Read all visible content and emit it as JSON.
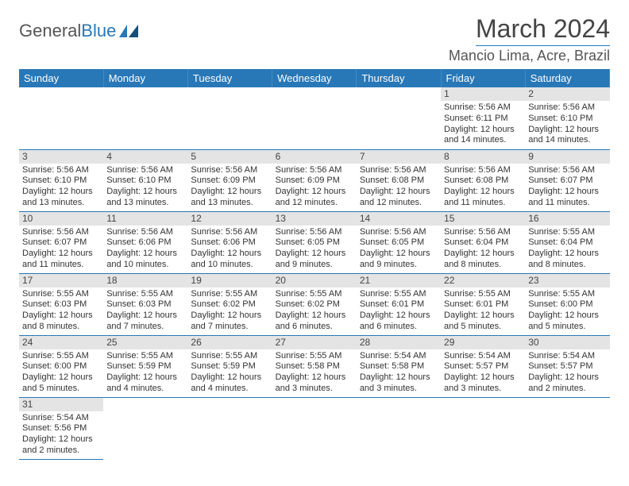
{
  "logo": {
    "text1": "General",
    "text2": "Blue"
  },
  "title": "March 2024",
  "location": "Mancio Lima, Acre, Brazil",
  "colors": {
    "header_bg": "#2878b8",
    "header_text": "#ffffff",
    "daynum_bg": "#e4e4e4",
    "border": "#2878b8",
    "body_text": "#333333",
    "title_text": "#444444"
  },
  "weekdays": [
    "Sunday",
    "Monday",
    "Tuesday",
    "Wednesday",
    "Thursday",
    "Friday",
    "Saturday"
  ],
  "weeks": [
    [
      {
        "empty": true
      },
      {
        "empty": true
      },
      {
        "empty": true
      },
      {
        "empty": true
      },
      {
        "empty": true
      },
      {
        "n": "1",
        "sr": "Sunrise: 5:56 AM",
        "ss": "Sunset: 6:11 PM",
        "d1": "Daylight: 12 hours",
        "d2": "and 14 minutes."
      },
      {
        "n": "2",
        "sr": "Sunrise: 5:56 AM",
        "ss": "Sunset: 6:10 PM",
        "d1": "Daylight: 12 hours",
        "d2": "and 14 minutes."
      }
    ],
    [
      {
        "n": "3",
        "sr": "Sunrise: 5:56 AM",
        "ss": "Sunset: 6:10 PM",
        "d1": "Daylight: 12 hours",
        "d2": "and 13 minutes."
      },
      {
        "n": "4",
        "sr": "Sunrise: 5:56 AM",
        "ss": "Sunset: 6:10 PM",
        "d1": "Daylight: 12 hours",
        "d2": "and 13 minutes."
      },
      {
        "n": "5",
        "sr": "Sunrise: 5:56 AM",
        "ss": "Sunset: 6:09 PM",
        "d1": "Daylight: 12 hours",
        "d2": "and 13 minutes."
      },
      {
        "n": "6",
        "sr": "Sunrise: 5:56 AM",
        "ss": "Sunset: 6:09 PM",
        "d1": "Daylight: 12 hours",
        "d2": "and 12 minutes."
      },
      {
        "n": "7",
        "sr": "Sunrise: 5:56 AM",
        "ss": "Sunset: 6:08 PM",
        "d1": "Daylight: 12 hours",
        "d2": "and 12 minutes."
      },
      {
        "n": "8",
        "sr": "Sunrise: 5:56 AM",
        "ss": "Sunset: 6:08 PM",
        "d1": "Daylight: 12 hours",
        "d2": "and 11 minutes."
      },
      {
        "n": "9",
        "sr": "Sunrise: 5:56 AM",
        "ss": "Sunset: 6:07 PM",
        "d1": "Daylight: 12 hours",
        "d2": "and 11 minutes."
      }
    ],
    [
      {
        "n": "10",
        "sr": "Sunrise: 5:56 AM",
        "ss": "Sunset: 6:07 PM",
        "d1": "Daylight: 12 hours",
        "d2": "and 11 minutes."
      },
      {
        "n": "11",
        "sr": "Sunrise: 5:56 AM",
        "ss": "Sunset: 6:06 PM",
        "d1": "Daylight: 12 hours",
        "d2": "and 10 minutes."
      },
      {
        "n": "12",
        "sr": "Sunrise: 5:56 AM",
        "ss": "Sunset: 6:06 PM",
        "d1": "Daylight: 12 hours",
        "d2": "and 10 minutes."
      },
      {
        "n": "13",
        "sr": "Sunrise: 5:56 AM",
        "ss": "Sunset: 6:05 PM",
        "d1": "Daylight: 12 hours",
        "d2": "and 9 minutes."
      },
      {
        "n": "14",
        "sr": "Sunrise: 5:56 AM",
        "ss": "Sunset: 6:05 PM",
        "d1": "Daylight: 12 hours",
        "d2": "and 9 minutes."
      },
      {
        "n": "15",
        "sr": "Sunrise: 5:56 AM",
        "ss": "Sunset: 6:04 PM",
        "d1": "Daylight: 12 hours",
        "d2": "and 8 minutes."
      },
      {
        "n": "16",
        "sr": "Sunrise: 5:55 AM",
        "ss": "Sunset: 6:04 PM",
        "d1": "Daylight: 12 hours",
        "d2": "and 8 minutes."
      }
    ],
    [
      {
        "n": "17",
        "sr": "Sunrise: 5:55 AM",
        "ss": "Sunset: 6:03 PM",
        "d1": "Daylight: 12 hours",
        "d2": "and 8 minutes."
      },
      {
        "n": "18",
        "sr": "Sunrise: 5:55 AM",
        "ss": "Sunset: 6:03 PM",
        "d1": "Daylight: 12 hours",
        "d2": "and 7 minutes."
      },
      {
        "n": "19",
        "sr": "Sunrise: 5:55 AM",
        "ss": "Sunset: 6:02 PM",
        "d1": "Daylight: 12 hours",
        "d2": "and 7 minutes."
      },
      {
        "n": "20",
        "sr": "Sunrise: 5:55 AM",
        "ss": "Sunset: 6:02 PM",
        "d1": "Daylight: 12 hours",
        "d2": "and 6 minutes."
      },
      {
        "n": "21",
        "sr": "Sunrise: 5:55 AM",
        "ss": "Sunset: 6:01 PM",
        "d1": "Daylight: 12 hours",
        "d2": "and 6 minutes."
      },
      {
        "n": "22",
        "sr": "Sunrise: 5:55 AM",
        "ss": "Sunset: 6:01 PM",
        "d1": "Daylight: 12 hours",
        "d2": "and 5 minutes."
      },
      {
        "n": "23",
        "sr": "Sunrise: 5:55 AM",
        "ss": "Sunset: 6:00 PM",
        "d1": "Daylight: 12 hours",
        "d2": "and 5 minutes."
      }
    ],
    [
      {
        "n": "24",
        "sr": "Sunrise: 5:55 AM",
        "ss": "Sunset: 6:00 PM",
        "d1": "Daylight: 12 hours",
        "d2": "and 5 minutes."
      },
      {
        "n": "25",
        "sr": "Sunrise: 5:55 AM",
        "ss": "Sunset: 5:59 PM",
        "d1": "Daylight: 12 hours",
        "d2": "and 4 minutes."
      },
      {
        "n": "26",
        "sr": "Sunrise: 5:55 AM",
        "ss": "Sunset: 5:59 PM",
        "d1": "Daylight: 12 hours",
        "d2": "and 4 minutes."
      },
      {
        "n": "27",
        "sr": "Sunrise: 5:55 AM",
        "ss": "Sunset: 5:58 PM",
        "d1": "Daylight: 12 hours",
        "d2": "and 3 minutes."
      },
      {
        "n": "28",
        "sr": "Sunrise: 5:54 AM",
        "ss": "Sunset: 5:58 PM",
        "d1": "Daylight: 12 hours",
        "d2": "and 3 minutes."
      },
      {
        "n": "29",
        "sr": "Sunrise: 5:54 AM",
        "ss": "Sunset: 5:57 PM",
        "d1": "Daylight: 12 hours",
        "d2": "and 3 minutes."
      },
      {
        "n": "30",
        "sr": "Sunrise: 5:54 AM",
        "ss": "Sunset: 5:57 PM",
        "d1": "Daylight: 12 hours",
        "d2": "and 2 minutes."
      }
    ],
    [
      {
        "n": "31",
        "sr": "Sunrise: 5:54 AM",
        "ss": "Sunset: 5:56 PM",
        "d1": "Daylight: 12 hours",
        "d2": "and 2 minutes."
      },
      {
        "empty": true
      },
      {
        "empty": true
      },
      {
        "empty": true
      },
      {
        "empty": true
      },
      {
        "empty": true
      },
      {
        "empty": true
      }
    ]
  ]
}
